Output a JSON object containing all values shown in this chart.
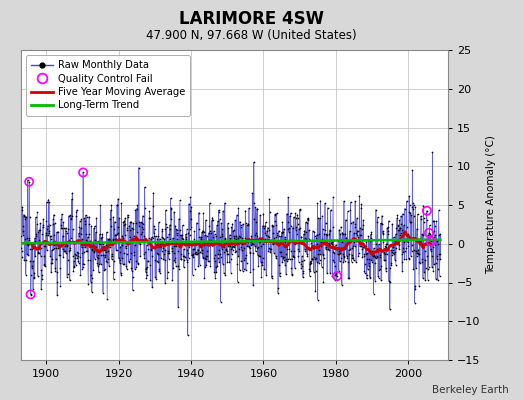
{
  "title": "LARIMORE 4SW",
  "subtitle": "47.900 N, 97.668 W (United States)",
  "ylabel": "Temperature Anomaly (°C)",
  "credit": "Berkeley Earth",
  "xlim": [
    1893,
    2011
  ],
  "ylim": [
    -15,
    25
  ],
  "yticks": [
    -15,
    -10,
    -5,
    0,
    5,
    10,
    15,
    20,
    25
  ],
  "xticks": [
    1900,
    1920,
    1940,
    1960,
    1980,
    2000
  ],
  "bg_color": "#d8d8d8",
  "plot_bg_color": "#ffffff",
  "grid_color": "#bbbbbb",
  "raw_line_color": "#4444cc",
  "raw_dot_color": "#000000",
  "moving_avg_color": "#cc0000",
  "trend_color": "#00bb00",
  "qc_fail_color": "#ff00ff",
  "seed": 12345,
  "n_years": 116,
  "start_year": 1893
}
